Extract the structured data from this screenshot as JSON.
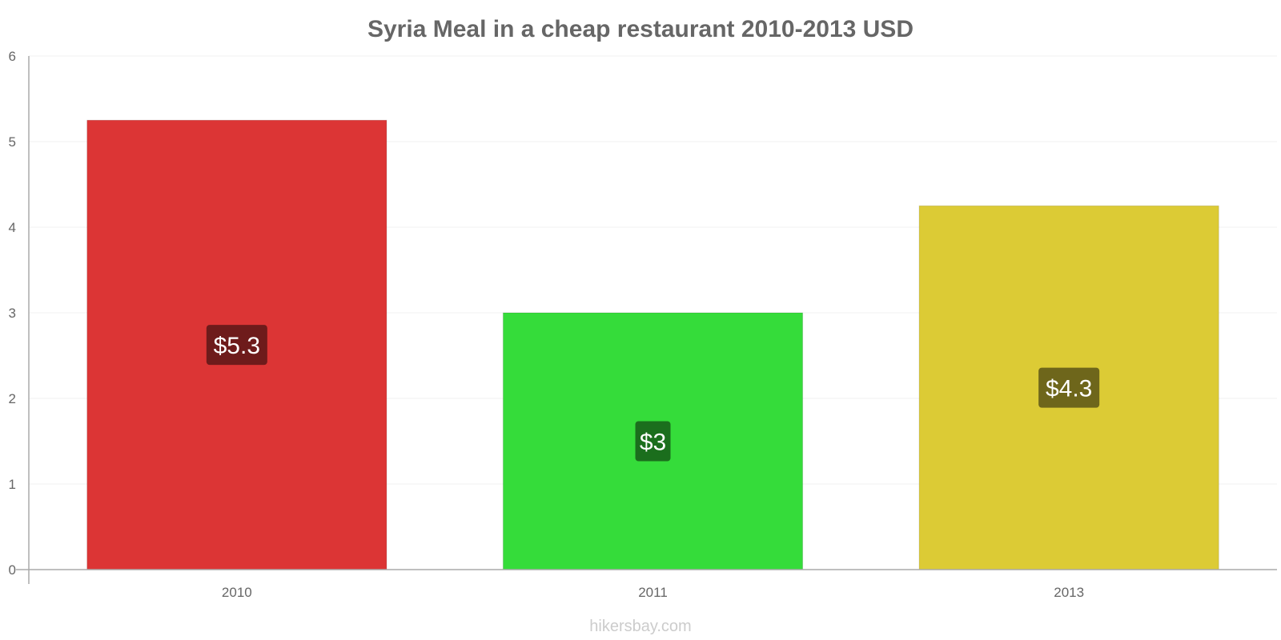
{
  "chart_data": {
    "type": "bar",
    "title": "Syria Meal in a cheap restaurant 2010-2013 USD",
    "categories": [
      "2010",
      "2011",
      "2013"
    ],
    "values": [
      5.25,
      3.0,
      4.25
    ],
    "value_labels": [
      "$5.3",
      "$3",
      "$4.3"
    ],
    "colors": [
      "#dc3535",
      "#35dc3a",
      "#dccb35"
    ],
    "label_colors": [
      "#6e1b1b",
      "#1b6e1d",
      "#6e661b"
    ],
    "ylim": [
      0,
      6
    ],
    "yticks": [
      "0",
      "1",
      "2",
      "3",
      "4",
      "5",
      "6"
    ],
    "grid": true,
    "xlabel": "",
    "ylabel": ""
  },
  "watermark": "hikersbay.com"
}
